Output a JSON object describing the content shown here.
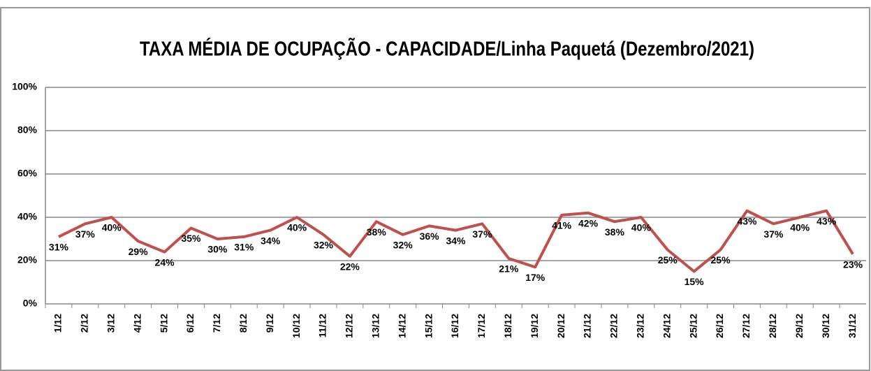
{
  "chart_data": {
    "type": "line",
    "title": "TAXA MÉDIA DE OCUPAÇÃO - CAPACIDADE/Linha Paquetá (Dezembro/2021)",
    "categories": [
      "1/12",
      "2/12",
      "3/12",
      "4/12",
      "5/12",
      "6/12",
      "7/12",
      "8/12",
      "9/12",
      "10/12",
      "11/12",
      "12/12",
      "13/12",
      "14/12",
      "15/12",
      "16/12",
      "17/12",
      "18/12",
      "19/12",
      "20/12",
      "21/12",
      "22/12",
      "23/12",
      "24/12",
      "25/12",
      "26/12",
      "27/12",
      "28/12",
      "29/12",
      "30/12",
      "31/12"
    ],
    "series": [
      {
        "name": "Taxa",
        "color": "#c0504d",
        "values": [
          31,
          37,
          40,
          29,
          24,
          35,
          30,
          31,
          34,
          40,
          32,
          22,
          38,
          32,
          36,
          34,
          37,
          21,
          17,
          41,
          42,
          38,
          40,
          25,
          15,
          25,
          43,
          37,
          40,
          43,
          23
        ],
        "value_labels": [
          "31%",
          "37%",
          "40%",
          "29%",
          "24%",
          "35%",
          "30%",
          "31%",
          "34%",
          "40%",
          "32%",
          "22%",
          "38%",
          "32%",
          "36%",
          "34%",
          "37%",
          "21%",
          "17%",
          "41%",
          "42%",
          "38%",
          "40%",
          "25%",
          "15%",
          "25%",
          "43%",
          "37%",
          "40%",
          "43%",
          "23%"
        ]
      }
    ],
    "ylim": [
      0,
      100
    ],
    "yticks": [
      {
        "value": 0,
        "label": "0%"
      },
      {
        "value": 20,
        "label": "20%"
      },
      {
        "value": 40,
        "label": "40%"
      },
      {
        "value": 60,
        "label": "60%"
      },
      {
        "value": 80,
        "label": "80%"
      },
      {
        "value": 100,
        "label": "100%"
      }
    ],
    "grid": true
  }
}
